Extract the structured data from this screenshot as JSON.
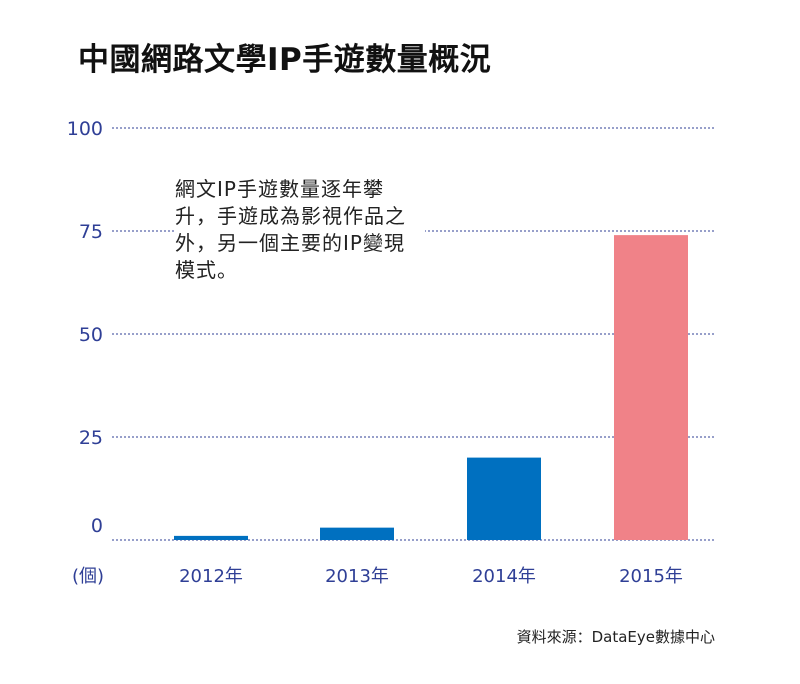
{
  "header": {
    "title": "中國網路文學IP手遊數量概況"
  },
  "annotation": "網文IP手遊數量逐年攀升，手遊成為影視作品之外，另一個主要的IP變現模式。",
  "source": "資料來源：DataEye數據中心",
  "chart_data": {
    "type": "bar",
    "title": "中國網路文學IP手遊數量概況",
    "xlabel": "",
    "ylabel": "(個)",
    "categories": [
      "2012年",
      "2013年",
      "2014年",
      "2015年"
    ],
    "values": [
      1,
      3,
      20,
      74
    ],
    "ylim": [
      0,
      100
    ],
    "yticks": [
      0,
      25,
      50,
      75,
      100
    ],
    "grid": true,
    "bar_colors": [
      "#0070c0",
      "#0070c0",
      "#0070c0",
      "#f08288"
    ],
    "axis_text_color": "#2f3f96",
    "gridline_color": "#2f3f96"
  }
}
